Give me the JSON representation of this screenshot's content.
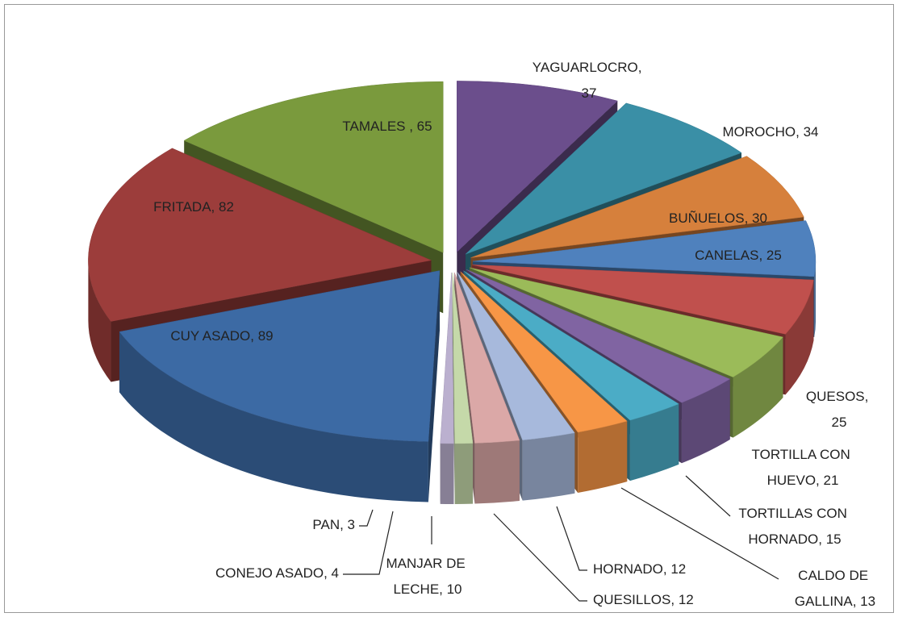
{
  "chart_data": {
    "type": "pie3d",
    "values": [
      37,
      34,
      30,
      25,
      25,
      21,
      15,
      13,
      12,
      12,
      10,
      4,
      3,
      89,
      82,
      65
    ],
    "value_labels": [
      "YAGUARLOCRO, 37",
      "MOROCHO, 34",
      "BUÑUELOS, 30",
      "CANELAS, 25",
      "QUESOS, 25",
      "TORTILLA CON HUEVO, 21",
      "TORTILLAS CON HORNADO, 15",
      "CALDO DE GALLINA, 13",
      "HORNADO, 12",
      "QUESILLOS, 12",
      "MANJAR DE LECHE, 10",
      "CONEJO ASADO, 4",
      "PAN, 3",
      "CUY ASADO, 89",
      "FRITADA, 82",
      "TAMALES , 65"
    ],
    "colors": [
      "#6b4e8c",
      "#3a8fa6",
      "#d6803c",
      "#4f81bd",
      "#c0504d",
      "#9bbb59",
      "#8064a2",
      "#4bacc6",
      "#f79646",
      "#a7b9dc",
      "#dba8a7",
      "#c5d9a9",
      "#bbb0cf",
      "#3c6aa4",
      "#9c3d3b",
      "#7a9a3d"
    ]
  }
}
